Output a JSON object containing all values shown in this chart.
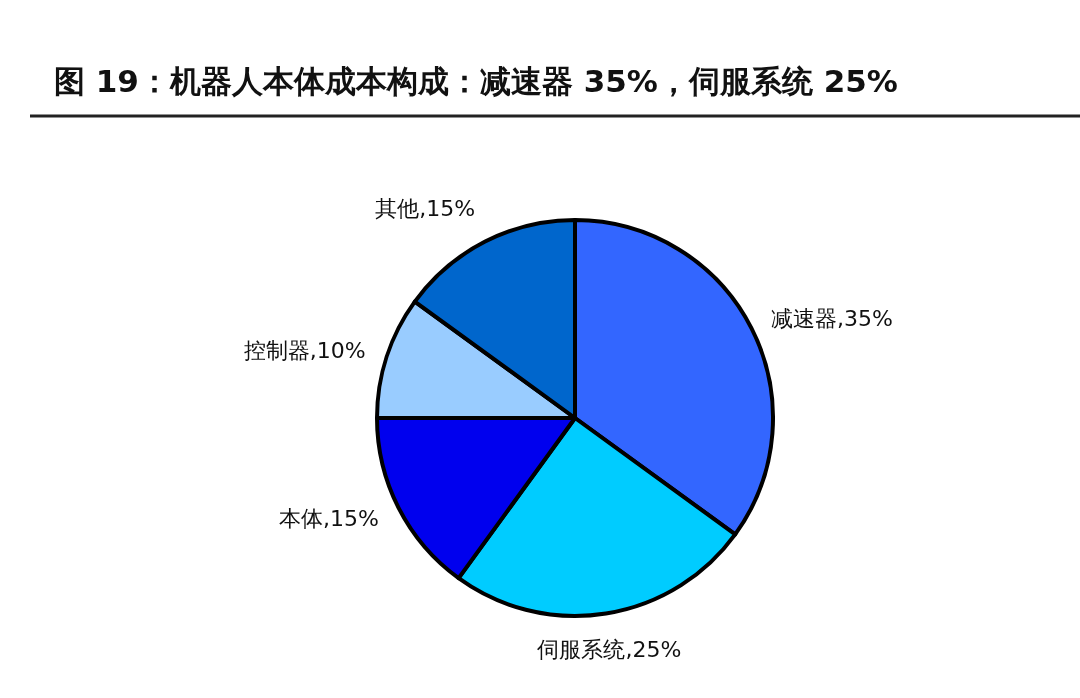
{
  "chart_data": {
    "type": "pie",
    "title": "图  19：机器人本体成本构成：减速器 35%，伺服系统 25%",
    "categories": [
      "减速器",
      "伺服系统",
      "本体",
      "控制器",
      "其他"
    ],
    "values": [
      35,
      25,
      15,
      10,
      15
    ],
    "colors": [
      "#3366ff",
      "#00ccff",
      "#0000ee",
      "#99ccff",
      "#0066cc"
    ],
    "value_labels": [
      ",35%",
      ",25%",
      ",15%",
      ",10%",
      ",15%"
    ]
  }
}
